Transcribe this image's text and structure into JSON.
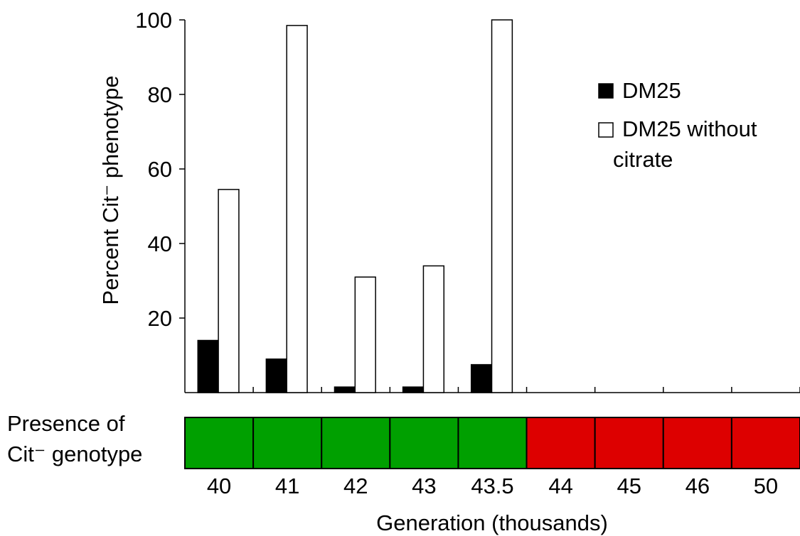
{
  "chart_data": {
    "type": "bar",
    "ylabel": "Percent Cit⁻ phenotype",
    "xlabel": "Generation (thousands)",
    "ylim": [
      0,
      100
    ],
    "yticks": [
      20,
      40,
      60,
      80,
      100
    ],
    "categories": [
      "40",
      "41",
      "42",
      "43",
      "43.5",
      "44",
      "45",
      "46",
      "50"
    ],
    "series": [
      {
        "name": "DM25",
        "color": "#000000",
        "values": [
          14,
          9,
          1.5,
          1.5,
          7.5,
          0,
          0,
          0,
          0
        ]
      },
      {
        "name": "DM25 without citrate",
        "color": "#ffffff",
        "values": [
          54.5,
          98.5,
          31,
          34,
          100,
          0,
          0,
          0,
          0
        ]
      }
    ],
    "legend": {
      "position": "top-right",
      "entries": [
        "DM25",
        "DM25 without",
        "citrate"
      ]
    },
    "genotype_track": {
      "label_line1": "Presence of",
      "label_line2": "Cit⁻ genotype",
      "present": [
        true,
        true,
        true,
        true,
        true,
        false,
        false,
        false,
        false
      ],
      "present_color": "#00a000",
      "absent_color": "#dd0000"
    }
  }
}
